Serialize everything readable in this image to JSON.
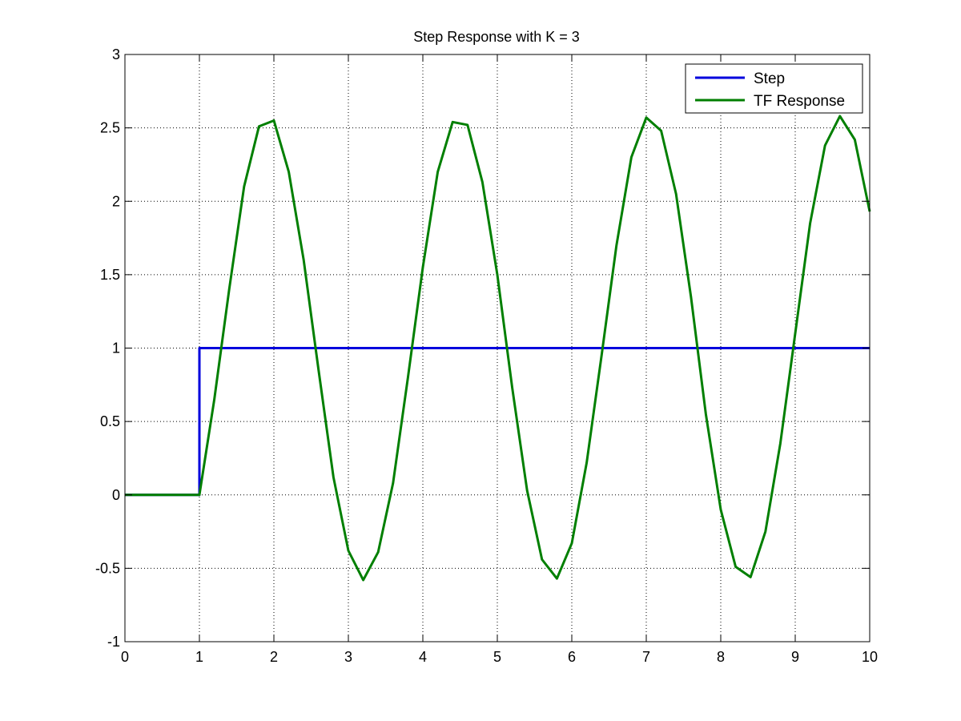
{
  "chart_data": {
    "type": "line",
    "title": "Step Response with K = 3",
    "xlabel": "",
    "ylabel": "",
    "xlim": [
      0,
      10
    ],
    "ylim": [
      -1,
      3
    ],
    "xticks": [
      0,
      1,
      2,
      3,
      4,
      5,
      6,
      7,
      8,
      9,
      10
    ],
    "yticks": [
      -1,
      -0.5,
      0,
      0.5,
      1,
      1.5,
      2,
      2.5,
      3
    ],
    "xtick_labels": [
      "0",
      "1",
      "2",
      "3",
      "4",
      "5",
      "6",
      "7",
      "8",
      "9",
      "10"
    ],
    "ytick_labels": [
      "-1",
      "-0.5",
      "0",
      "0.5",
      "1",
      "1.5",
      "2",
      "2.5",
      "3"
    ],
    "grid": true,
    "legend_position": "top-right",
    "series": [
      {
        "name": "Step",
        "color": "#0000dd",
        "points": [
          [
            0,
            0
          ],
          [
            1,
            0
          ],
          [
            1,
            1
          ],
          [
            10,
            1
          ]
        ]
      },
      {
        "name": "TF Response",
        "color": "#007f00",
        "points": [
          [
            0,
            0
          ],
          [
            1,
            0
          ],
          [
            1.2,
            0.65
          ],
          [
            1.4,
            1.4
          ],
          [
            1.6,
            2.1
          ],
          [
            1.8,
            2.51
          ],
          [
            2.0,
            2.55
          ],
          [
            2.2,
            2.2
          ],
          [
            2.4,
            1.6
          ],
          [
            2.6,
            0.85
          ],
          [
            2.8,
            0.12
          ],
          [
            3.0,
            -0.38
          ],
          [
            3.2,
            -0.58
          ],
          [
            3.4,
            -0.39
          ],
          [
            3.6,
            0.08
          ],
          [
            3.8,
            0.8
          ],
          [
            4.0,
            1.55
          ],
          [
            4.2,
            2.2
          ],
          [
            4.4,
            2.54
          ],
          [
            4.6,
            2.52
          ],
          [
            4.8,
            2.13
          ],
          [
            5.0,
            1.5
          ],
          [
            5.2,
            0.73
          ],
          [
            5.4,
            0.03
          ],
          [
            5.6,
            -0.44
          ],
          [
            5.8,
            -0.57
          ],
          [
            6.0,
            -0.33
          ],
          [
            6.2,
            0.22
          ],
          [
            6.4,
            0.95
          ],
          [
            6.6,
            1.7
          ],
          [
            6.8,
            2.3
          ],
          [
            7.0,
            2.57
          ],
          [
            7.2,
            2.48
          ],
          [
            7.4,
            2.05
          ],
          [
            7.6,
            1.35
          ],
          [
            7.8,
            0.55
          ],
          [
            8.0,
            -0.1
          ],
          [
            8.2,
            -0.49
          ],
          [
            8.4,
            -0.56
          ],
          [
            8.6,
            -0.25
          ],
          [
            8.8,
            0.35
          ],
          [
            9.0,
            1.1
          ],
          [
            9.2,
            1.85
          ],
          [
            9.4,
            2.38
          ],
          [
            9.6,
            2.58
          ],
          [
            9.8,
            2.42
          ],
          [
            10.0,
            1.93
          ]
        ]
      }
    ]
  }
}
